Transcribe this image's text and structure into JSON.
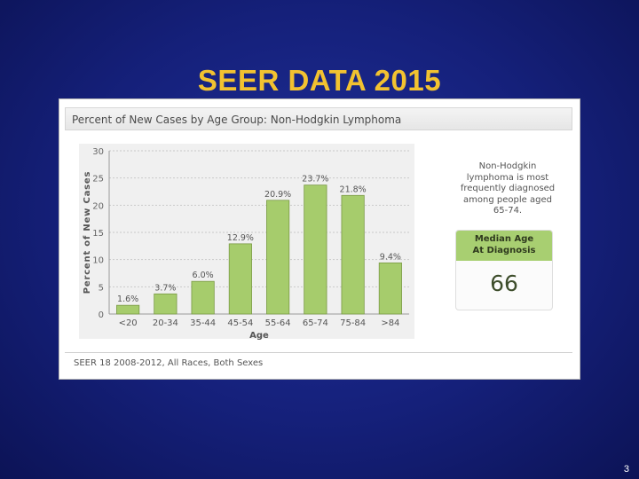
{
  "slide": {
    "title": "SEER DATA 2015",
    "page_number": "3"
  },
  "figure": {
    "title": "Percent of New Cases by Age Group: Non-Hodgkin Lymphoma",
    "footer": "SEER 18 2008-2012, All Races, Both Sexes",
    "note_lines": [
      "Non-Hodgkin",
      "lymphoma is most",
      "frequently diagnosed",
      "among people aged",
      "65-74."
    ],
    "median_label_lines": [
      "Median Age",
      "At Diagnosis"
    ],
    "median_value": "66"
  },
  "colors": {
    "bar": "#a6cc6c",
    "bar_border": "#7a9a45",
    "title": "#f2c230",
    "median_header": "#a8cf71"
  },
  "chart_data": {
    "type": "bar",
    "title": "Percent of New Cases by Age Group: Non-Hodgkin Lymphoma",
    "xlabel": "Age",
    "ylabel": "Percent of New Cases",
    "categories": [
      "<20",
      "20-34",
      "35-44",
      "45-54",
      "55-64",
      "65-74",
      "75-84",
      ">84"
    ],
    "values": [
      1.6,
      3.7,
      6.0,
      12.9,
      20.9,
      23.7,
      21.8,
      9.4
    ],
    "value_labels": [
      "1.6%",
      "3.7%",
      "6.0%",
      "12.9%",
      "20.9%",
      "23.7%",
      "21.8%",
      "9.4%"
    ],
    "ylim": [
      0,
      30
    ],
    "yticks": [
      0,
      5,
      10,
      15,
      20,
      25,
      30
    ],
    "grid": true,
    "legend": "none"
  }
}
